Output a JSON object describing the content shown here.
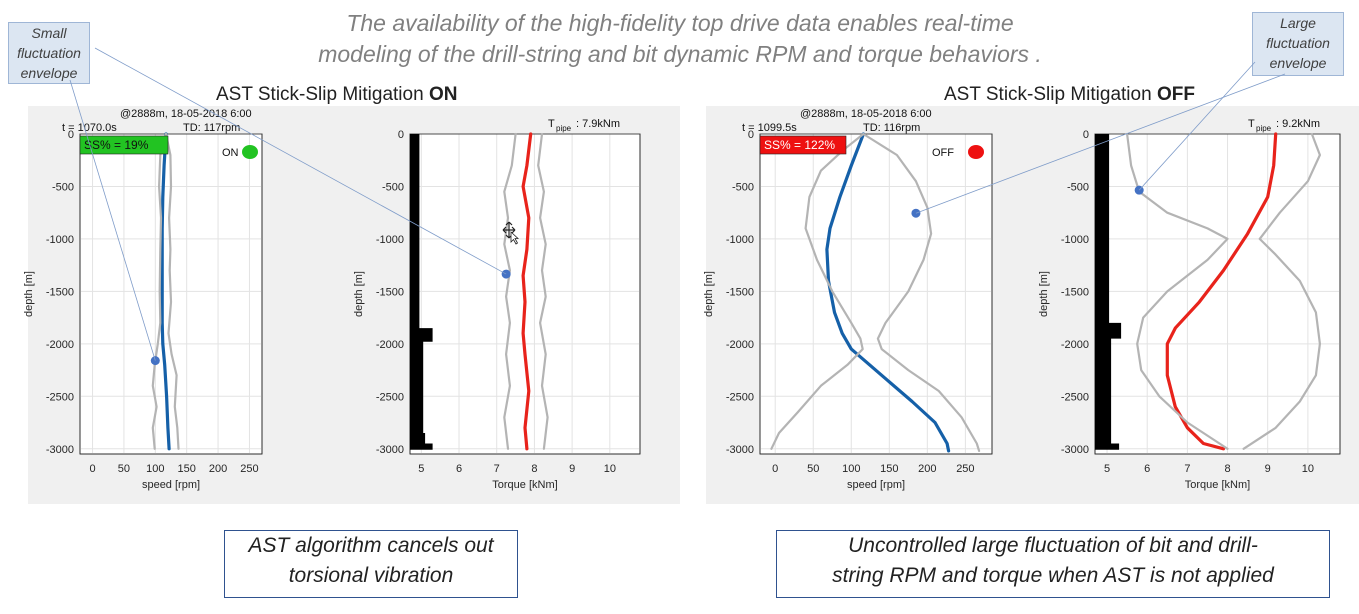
{
  "headline": {
    "line1": "The availability of the high-fidelity top drive data enables real-time",
    "line2": "modeling of the drill-string and bit dynamic RPM and torque behaviors ."
  },
  "callouts": {
    "small": {
      "line1": "Small",
      "line2": "fluctuation",
      "line3": "envelope"
    },
    "large": {
      "line1": "Large",
      "line2": "fluctuation",
      "line3": "envelope"
    }
  },
  "panels": {
    "on": {
      "title_text": "AST Stick-Slip Mitigation",
      "title_bold": "ON"
    },
    "off": {
      "title_text": "AST Stick-Slip Mitigation",
      "title_bold": "OFF"
    }
  },
  "summaries": {
    "left": {
      "line1": "AST algorithm cancels out",
      "line2": "torsional vibration"
    },
    "right": {
      "line1": "Uncontrolled large fluctuation of bit and drill-",
      "line2": "string RPM and torque when AST is not applied"
    }
  },
  "colors": {
    "speed": "#1560a8",
    "torque": "#e8231b",
    "envelope": "#b4b4b4",
    "marker": "#4472c4",
    "on_badge": "#22c322",
    "off_badge": "#ee1111"
  },
  "chart_data": [
    {
      "type": "line",
      "panel": "ON",
      "plot": "speed",
      "header_line1": "@2888m, 18-05-2018 6:00",
      "header_time": "t = 1070.0s",
      "header_td": "TD: 117rpm",
      "ss_label": "SS% = 19%",
      "status_label": "ON",
      "xlabel": "speed [rpm]",
      "ylabel": "depth [m]",
      "xlim": [
        -20,
        270
      ],
      "ylim": [
        -3050,
        0
      ],
      "xticks": [
        0,
        50,
        100,
        150,
        200,
        250
      ],
      "yticks": [
        0,
        -500,
        -1000,
        -1500,
        -2000,
        -2500,
        -3000
      ],
      "grid": true,
      "series": [
        {
          "role": "mean",
          "points": [
            [
              117,
              0
            ],
            [
              114,
              -300
            ],
            [
              112,
              -600
            ],
            [
              111,
              -900
            ],
            [
              111,
              -1200
            ],
            [
              111,
              -1500
            ],
            [
              111,
              -1800
            ],
            [
              112,
              -2000
            ],
            [
              115,
              -2200
            ],
            [
              118,
              -2500
            ],
            [
              120,
              -2800
            ],
            [
              122,
              -3000
            ]
          ]
        },
        {
          "role": "envelope-low",
          "points": [
            [
              117,
              0
            ],
            [
              108,
              -200
            ],
            [
              106,
              -500
            ],
            [
              109,
              -800
            ],
            [
              108,
              -1100
            ],
            [
              107,
              -1500
            ],
            [
              108,
              -1800
            ],
            [
              104,
              -2000
            ],
            [
              99,
              -2200
            ],
            [
              96,
              -2400
            ],
            [
              102,
              -2600
            ],
            [
              96,
              -2800
            ],
            [
              99,
              -3000
            ]
          ]
        },
        {
          "role": "envelope-high",
          "points": [
            [
              117,
              0
            ],
            [
              124,
              -200
            ],
            [
              125,
              -500
            ],
            [
              122,
              -800
            ],
            [
              124,
              -1100
            ],
            [
              123,
              -1300
            ],
            [
              125,
              -1600
            ],
            [
              121,
              -1900
            ],
            [
              126,
              -2100
            ],
            [
              134,
              -2300
            ],
            [
              131,
              -2600
            ],
            [
              135,
              -2800
            ],
            [
              137,
              -3000
            ]
          ]
        }
      ],
      "marker": [
        100,
        -2160
      ]
    },
    {
      "type": "line",
      "panel": "ON",
      "plot": "torque",
      "header_tpipe": "T",
      "header_tpipe_sub": "pipe",
      "header_tpipe_value": ": 7.9kNm",
      "xlabel": "Torque [kNm]",
      "ylabel": "depth [m]",
      "xlim": [
        4.7,
        10.8
      ],
      "ylim": [
        -3050,
        0
      ],
      "xticks": [
        5,
        6,
        7,
        8,
        9,
        10
      ],
      "yticks": [
        0,
        -500,
        -1000,
        -1500,
        -2000,
        -2500,
        -3000
      ],
      "grid": true,
      "series": [
        {
          "role": "mean",
          "points": [
            [
              7.9,
              0
            ],
            [
              7.8,
              -300
            ],
            [
              7.7,
              -500
            ],
            [
              7.85,
              -800
            ],
            [
              7.8,
              -1100
            ],
            [
              7.7,
              -1350
            ],
            [
              7.75,
              -1600
            ],
            [
              7.7,
              -1900
            ],
            [
              7.75,
              -2100
            ],
            [
              7.85,
              -2450
            ],
            [
              7.75,
              -2800
            ],
            [
              7.8,
              -3000
            ]
          ]
        },
        {
          "role": "envelope-low",
          "points": [
            [
              7.5,
              0
            ],
            [
              7.4,
              -300
            ],
            [
              7.2,
              -550
            ],
            [
              7.3,
              -800
            ],
            [
              7.2,
              -1050
            ],
            [
              7.35,
              -1300
            ],
            [
              7.25,
              -1550
            ],
            [
              7.35,
              -1800
            ],
            [
              7.25,
              -2100
            ],
            [
              7.35,
              -2400
            ],
            [
              7.2,
              -2700
            ],
            [
              7.3,
              -3000
            ]
          ]
        },
        {
          "role": "envelope-high",
          "points": [
            [
              8.2,
              0
            ],
            [
              8.1,
              -300
            ],
            [
              8.25,
              -550
            ],
            [
              8.15,
              -800
            ],
            [
              8.3,
              -1050
            ],
            [
              8.2,
              -1300
            ],
            [
              8.3,
              -1550
            ],
            [
              8.15,
              -1800
            ],
            [
              8.3,
              -2100
            ],
            [
              8.2,
              -2400
            ],
            [
              8.35,
              -2700
            ],
            [
              8.25,
              -3000
            ]
          ]
        }
      ],
      "drill_bar": [
        [
          0,
          4.95
        ],
        [
          -1850,
          4.95
        ],
        [
          -1850,
          5.3
        ],
        [
          -1980,
          5.3
        ],
        [
          -1980,
          5.05
        ],
        [
          -2850,
          5.05
        ],
        [
          -2850,
          5.1
        ],
        [
          -2950,
          5.1
        ],
        [
          -2950,
          5.3
        ],
        [
          -3010,
          5.3
        ]
      ],
      "marker": [
        7.25,
        -1335
      ]
    },
    {
      "type": "line",
      "panel": "OFF",
      "plot": "speed",
      "header_line1": "@2888m, 18-05-2018 6:00",
      "header_time": "t = 1099.5s",
      "header_td": "TD: 116rpm",
      "ss_label": "SS% = 122%",
      "status_label": "OFF",
      "xlabel": "speed [rpm]",
      "ylabel": "depth [m]",
      "xlim": [
        -20,
        285
      ],
      "ylim": [
        -3050,
        0
      ],
      "xticks": [
        0,
        50,
        100,
        150,
        200,
        250
      ],
      "yticks": [
        0,
        -500,
        -1000,
        -1500,
        -2000,
        -2500,
        -3000
      ],
      "grid": true,
      "series": [
        {
          "role": "mean",
          "points": [
            [
              116,
              0
            ],
            [
              100,
              -300
            ],
            [
              85,
              -600
            ],
            [
              72,
              -900
            ],
            [
              68,
              -1100
            ],
            [
              70,
              -1400
            ],
            [
              78,
              -1700
            ],
            [
              88,
              -1900
            ],
            [
              100,
              -2050
            ],
            [
              140,
              -2300
            ],
            [
              180,
              -2550
            ],
            [
              210,
              -2750
            ],
            [
              226,
              -2950
            ],
            [
              228,
              -3020
            ]
          ]
        },
        {
          "role": "envelope-low",
          "points": [
            [
              116,
              0
            ],
            [
              90,
              -150
            ],
            [
              60,
              -350
            ],
            [
              45,
              -600
            ],
            [
              40,
              -900
            ],
            [
              55,
              -1200
            ],
            [
              75,
              -1500
            ],
            [
              100,
              -1800
            ],
            [
              112,
              -1950
            ],
            [
              115,
              -2050
            ],
            [
              95,
              -2200
            ],
            [
              60,
              -2400
            ],
            [
              30,
              -2650
            ],
            [
              5,
              -2850
            ],
            [
              -5,
              -3000
            ]
          ]
        },
        {
          "role": "envelope-high",
          "points": [
            [
              116,
              0
            ],
            [
              160,
              -200
            ],
            [
              185,
              -450
            ],
            [
              200,
              -700
            ],
            [
              205,
              -950
            ],
            [
              195,
              -1200
            ],
            [
              175,
              -1500
            ],
            [
              145,
              -1800
            ],
            [
              135,
              -1950
            ],
            [
              140,
              -2050
            ],
            [
              175,
              -2250
            ],
            [
              215,
              -2450
            ],
            [
              245,
              -2700
            ],
            [
              265,
              -2950
            ],
            [
              268,
              -3020
            ]
          ]
        }
      ],
      "marker": [
        185,
        -755
      ]
    },
    {
      "type": "line",
      "panel": "OFF",
      "plot": "torque",
      "header_tpipe": "T",
      "header_tpipe_sub": "pipe",
      "header_tpipe_value": ": 9.2kNm",
      "xlabel": "Torque [kNm]",
      "ylabel": "depth [m]",
      "xlim": [
        4.7,
        10.8
      ],
      "ylim": [
        -3050,
        0
      ],
      "xticks": [
        5,
        6,
        7,
        8,
        9,
        10
      ],
      "yticks": [
        0,
        -500,
        -1000,
        -1500,
        -2000,
        -2500,
        -3000
      ],
      "grid": true,
      "series": [
        {
          "role": "mean",
          "points": [
            [
              9.2,
              0
            ],
            [
              9.15,
              -300
            ],
            [
              9.0,
              -600
            ],
            [
              8.5,
              -950
            ],
            [
              7.9,
              -1300
            ],
            [
              7.3,
              -1600
            ],
            [
              6.7,
              -1850
            ],
            [
              6.5,
              -2000
            ],
            [
              6.5,
              -2300
            ],
            [
              6.7,
              -2600
            ],
            [
              7.0,
              -2800
            ],
            [
              7.4,
              -2950
            ],
            [
              7.9,
              -3000
            ]
          ]
        },
        {
          "role": "envelope-low",
          "points": [
            [
              5.5,
              0
            ],
            [
              5.6,
              -300
            ],
            [
              5.8,
              -550
            ],
            [
              6.5,
              -750
            ],
            [
              7.5,
              -900
            ],
            [
              8.0,
              -1000
            ],
            [
              7.5,
              -1200
            ],
            [
              6.5,
              -1500
            ],
            [
              5.9,
              -1750
            ],
            [
              5.75,
              -2000
            ],
            [
              5.85,
              -2250
            ],
            [
              6.3,
              -2500
            ],
            [
              7.0,
              -2750
            ],
            [
              7.8,
              -2950
            ],
            [
              8.0,
              -3000
            ]
          ]
        },
        {
          "role": "envelope-high",
          "points": [
            [
              10.1,
              0
            ],
            [
              10.3,
              -200
            ],
            [
              10.0,
              -450
            ],
            [
              9.3,
              -750
            ],
            [
              8.8,
              -1000
            ],
            [
              9.2,
              -1150
            ],
            [
              9.8,
              -1400
            ],
            [
              10.2,
              -1700
            ],
            [
              10.3,
              -2000
            ],
            [
              10.2,
              -2300
            ],
            [
              9.8,
              -2550
            ],
            [
              9.2,
              -2800
            ],
            [
              8.4,
              -3000
            ]
          ]
        }
      ],
      "drill_bar": [
        [
          0,
          5.05
        ],
        [
          -1800,
          5.05
        ],
        [
          -1800,
          5.35
        ],
        [
          -1950,
          5.35
        ],
        [
          -1950,
          5.1
        ],
        [
          -2900,
          5.1
        ],
        [
          -2900,
          5.1
        ],
        [
          -2950,
          5.1
        ],
        [
          -2950,
          5.3
        ],
        [
          -3010,
          5.3
        ]
      ],
      "marker": [
        5.8,
        -535
      ]
    }
  ]
}
